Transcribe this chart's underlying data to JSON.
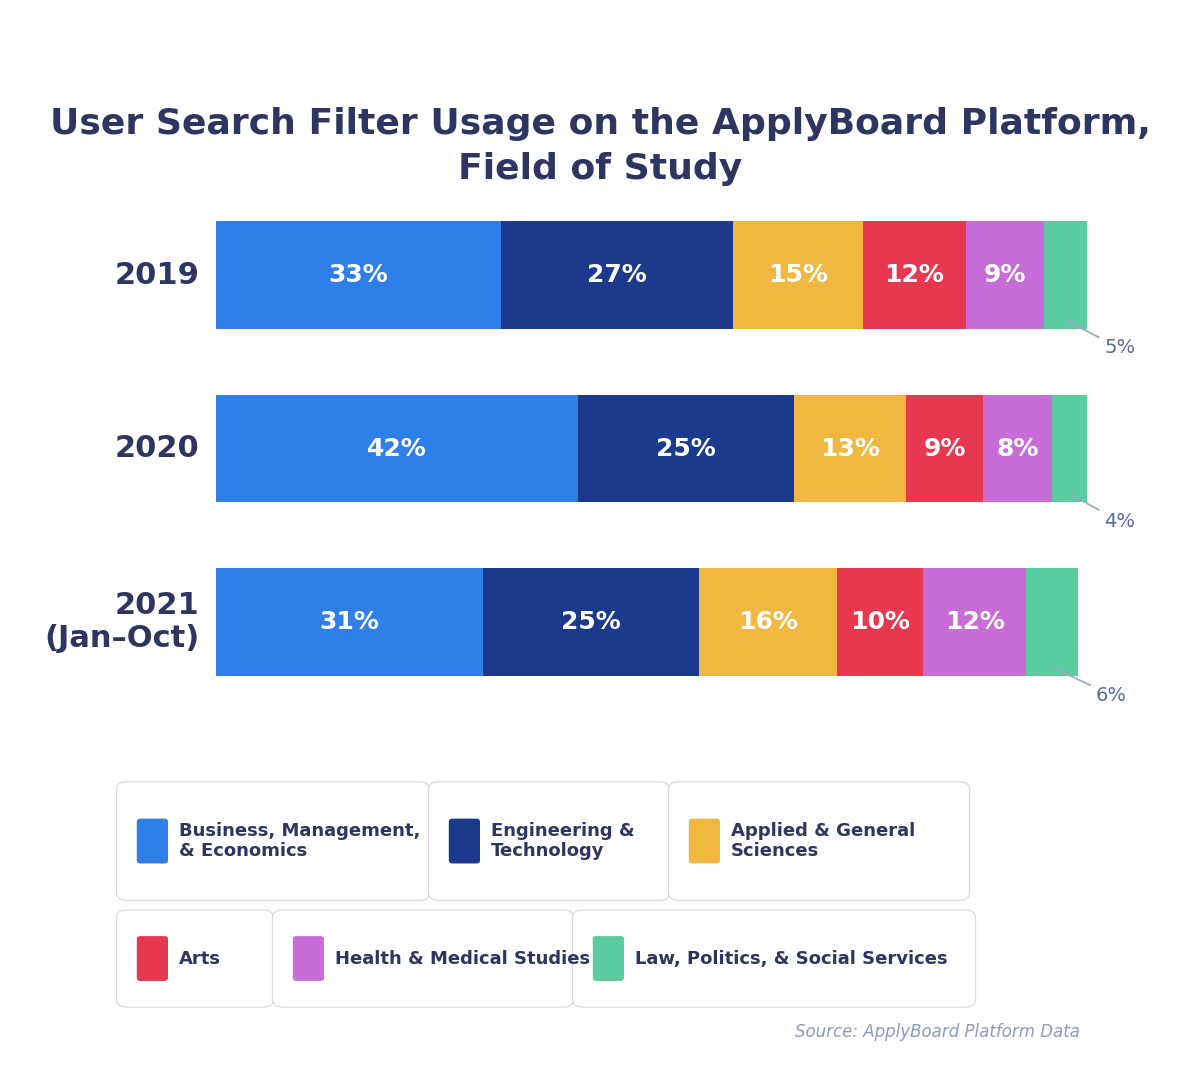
{
  "title": "User Search Filter Usage on the ApplyBoard Platform,\nField of Study",
  "title_color": "#2d3561",
  "title_fontsize": 26,
  "years": [
    "2019",
    "2020",
    "2021\n(Jan–Oct)"
  ],
  "categories": [
    "Business, Management,\n& Economics",
    "Engineering &\nTechnology",
    "Applied & General\nSciences",
    "Arts",
    "Health & Medical Studies",
    "Law, Politics, & Social Services"
  ],
  "colors": [
    "#2f7fe8",
    "#1b3a8c",
    "#f0b840",
    "#e8384f",
    "#c86dd7",
    "#5bcba0"
  ],
  "data": [
    [
      33,
      27,
      15,
      12,
      9,
      5
    ],
    [
      42,
      25,
      13,
      9,
      8,
      4
    ],
    [
      31,
      25,
      16,
      10,
      12,
      6
    ]
  ],
  "bar_height": 0.62,
  "ylabel_fontsize": 22,
  "label_fontsize": 18,
  "annotation_fontsize": 14,
  "legend_fontsize": 13,
  "source_text": "Source: ApplyBoard Platform Data",
  "source_color": "#8a9bc0",
  "background_color": "#ffffff",
  "text_color": "#ffffff",
  "annotation_color": "#5a6a9a"
}
